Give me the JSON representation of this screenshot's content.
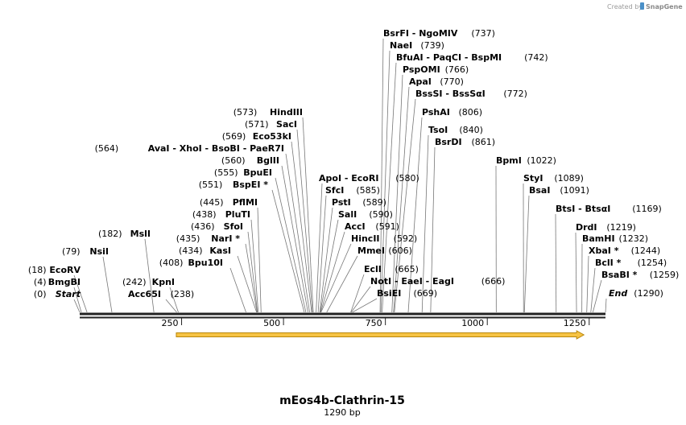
{
  "credit": {
    "prefix": "Created by",
    "brand": "SnapGene"
  },
  "sequence": {
    "name": "mEos4b-Clathrin-15",
    "length_label": "1290 bp",
    "length": 1290
  },
  "colors": {
    "feature_fill": "#f6c344",
    "feature_stroke": "#b8860b",
    "backbone": "#222222",
    "leader": "#777777"
  },
  "axis_ticks": [
    "250",
    "500",
    "750",
    "1000",
    "1250"
  ],
  "feature": {
    "start": 237,
    "end": 1237,
    "direction": "forward"
  },
  "sites": [
    {
      "name": "Start",
      "pos": "(0)",
      "bp": 0,
      "side": "left",
      "italic": true
    },
    {
      "name": "BmgBI",
      "pos": "(4)",
      "bp": 4,
      "side": "left"
    },
    {
      "name": "EcoRV",
      "pos": "(18)",
      "bp": 18,
      "side": "left"
    },
    {
      "name": "NsiI",
      "pos": "(79)",
      "bp": 79,
      "side": "left"
    },
    {
      "name": "MslI",
      "pos": "(182)",
      "bp": 182,
      "side": "left"
    },
    {
      "name": "Acc65I",
      "pos": "(238)",
      "bp": 238,
      "side": "right"
    },
    {
      "name": "KpnI",
      "pos": "(242)",
      "bp": 242,
      "side": "left"
    },
    {
      "name": "Bpu10I",
      "pos": "(408)",
      "bp": 408,
      "side": "left"
    },
    {
      "name": "KasI",
      "pos": "(434)",
      "bp": 434,
      "side": "left"
    },
    {
      "name": "NarI *",
      "pos": "(435)",
      "bp": 435,
      "side": "left"
    },
    {
      "name": "SfoI",
      "pos": "(436)",
      "bp": 436,
      "side": "left"
    },
    {
      "name": "PluTI",
      "pos": "(438)",
      "bp": 438,
      "side": "left"
    },
    {
      "name": "PflMI",
      "pos": "(445)",
      "bp": 445,
      "side": "left"
    },
    {
      "name": "BspEI *",
      "pos": "(551)",
      "bp": 551,
      "side": "left"
    },
    {
      "name": "BpuEI",
      "pos": "(555)",
      "bp": 555,
      "side": "left"
    },
    {
      "name": "BglII",
      "pos": "(560)",
      "bp": 560,
      "side": "left"
    },
    {
      "name": "AvaI - XhoI - BsoBI - PaeR7I",
      "pos": "(564)",
      "bp": 564,
      "side": "left"
    },
    {
      "name": "Eco53kI",
      "pos": "(569)",
      "bp": 569,
      "side": "left"
    },
    {
      "name": "SacI",
      "pos": "(571)",
      "bp": 571,
      "side": "left"
    },
    {
      "name": "HindIII",
      "pos": "(573)",
      "bp": 573,
      "side": "left"
    },
    {
      "name": "ApoI - EcoRI",
      "pos": "(580)",
      "bp": 580,
      "side": "right"
    },
    {
      "name": "SfcI",
      "pos": "(585)",
      "bp": 585,
      "side": "right"
    },
    {
      "name": "PstI",
      "pos": "(589)",
      "bp": 589,
      "side": "right"
    },
    {
      "name": "SalI",
      "pos": "(590)",
      "bp": 590,
      "side": "right"
    },
    {
      "name": "AccI",
      "pos": "(591)",
      "bp": 591,
      "side": "right"
    },
    {
      "name": "HincII",
      "pos": "(592)",
      "bp": 592,
      "side": "right"
    },
    {
      "name": "MmeI",
      "pos": "(606)",
      "bp": 606,
      "side": "right"
    },
    {
      "name": "EclI",
      "pos": "(665)",
      "bp": 665,
      "side": "right"
    },
    {
      "name": "NotI - EaeI - EagI",
      "pos": "(666)",
      "bp": 666,
      "side": "right"
    },
    {
      "name": "BsiEI",
      "pos": "(669)",
      "bp": 669,
      "side": "right"
    },
    {
      "name": "BsrFI - NgoMIV",
      "pos": "(737)",
      "bp": 737,
      "side": "right"
    },
    {
      "name": "NaeI",
      "pos": "(739)",
      "bp": 739,
      "side": "right"
    },
    {
      "name": "BfuAI - PaqCI - BspMI",
      "pos": "(742)",
      "bp": 742,
      "side": "right"
    },
    {
      "name": "PspOMI",
      "pos": "(766)",
      "bp": 766,
      "side": "right"
    },
    {
      "name": "ApaI",
      "pos": "(770)",
      "bp": 770,
      "side": "right"
    },
    {
      "name": "BssSI - BssSαI",
      "pos": "(772)",
      "bp": 772,
      "side": "right"
    },
    {
      "name": "PshAI",
      "pos": "(806)",
      "bp": 806,
      "side": "right"
    },
    {
      "name": "TsoI",
      "pos": "(840)",
      "bp": 840,
      "side": "right"
    },
    {
      "name": "BsrDI",
      "pos": "(861)",
      "bp": 861,
      "side": "right"
    },
    {
      "name": "BpmI",
      "pos": "(1022)",
      "bp": 1022,
      "side": "right"
    },
    {
      "name": "StyI",
      "pos": "(1089)",
      "bp": 1089,
      "side": "right"
    },
    {
      "name": "BsaI",
      "pos": "(1091)",
      "bp": 1091,
      "side": "right"
    },
    {
      "name": "BtsI - BtsαI",
      "pos": "(1169)",
      "bp": 1169,
      "side": "right"
    },
    {
      "name": "DrdI",
      "pos": "(1219)",
      "bp": 1219,
      "side": "right"
    },
    {
      "name": "BamHI",
      "pos": "(1232)",
      "bp": 1232,
      "side": "right"
    },
    {
      "name": "XbaI *",
      "pos": "(1244)",
      "bp": 1244,
      "side": "right"
    },
    {
      "name": "BclI *",
      "pos": "(1254)",
      "bp": 1254,
      "side": "right"
    },
    {
      "name": "BsaBI *",
      "pos": "(1259)",
      "bp": 1259,
      "side": "right"
    },
    {
      "name": "End",
      "pos": "(1290)",
      "bp": 1290,
      "side": "right",
      "italic": true
    }
  ]
}
